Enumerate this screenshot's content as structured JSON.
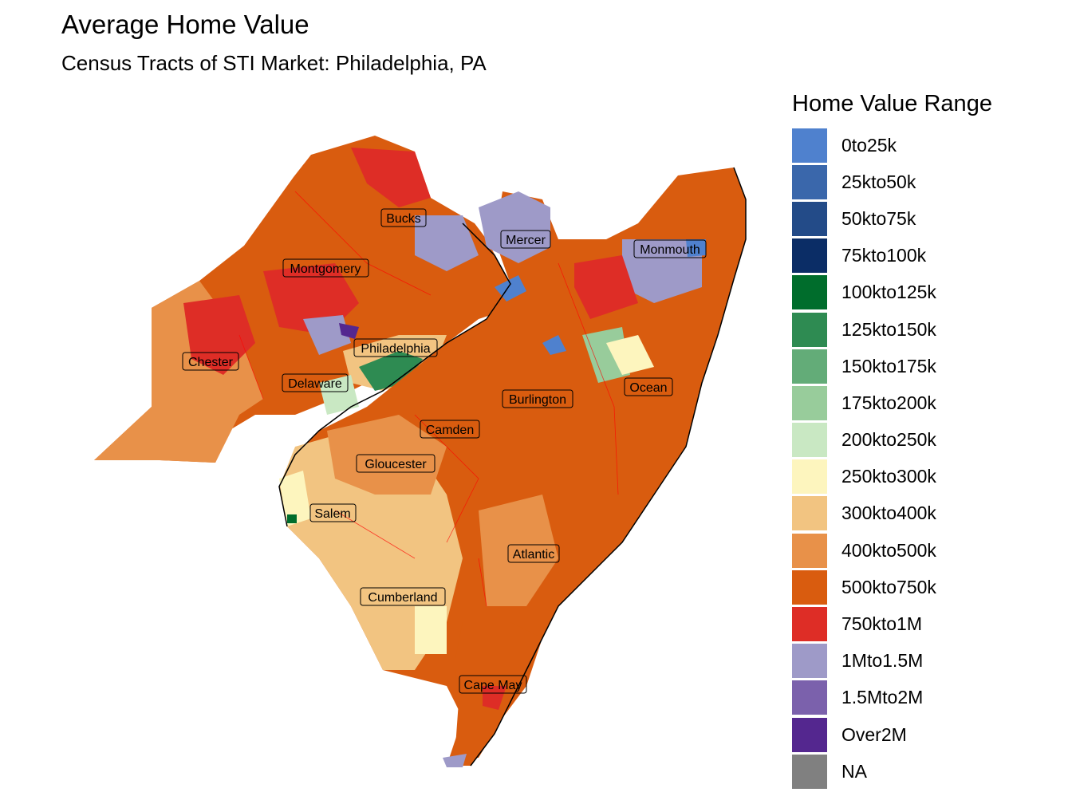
{
  "title": "Average Home Value",
  "subtitle": "Census Tracts of STI Market: Philadelphia, PA",
  "legend": {
    "title": "Home Value Range",
    "items": [
      {
        "label": "0to25k",
        "color": "#4F81CE"
      },
      {
        "label": "25kto50k",
        "color": "#3A67AB"
      },
      {
        "label": "50kto75k",
        "color": "#234B88"
      },
      {
        "label": "75kto100k",
        "color": "#0B2D66"
      },
      {
        "label": "100kto125k",
        "color": "#006D2C"
      },
      {
        "label": "125kto150k",
        "color": "#2E8B52"
      },
      {
        "label": "150kto175k",
        "color": "#63AC78"
      },
      {
        "label": "175kto200k",
        "color": "#98CC9B"
      },
      {
        "label": "200kto250k",
        "color": "#C9E8C3"
      },
      {
        "label": "250kto300k",
        "color": "#FDF5BE"
      },
      {
        "label": "300kto400k",
        "color": "#F2C481"
      },
      {
        "label": "400kto500k",
        "color": "#E89149"
      },
      {
        "label": "500kto750k",
        "color": "#D95C0F"
      },
      {
        "label": "750kto1M",
        "color": "#DE2D26"
      },
      {
        "label": "1Mto1.5M",
        "color": "#9E9AC8"
      },
      {
        "label": "1.5Mto2M",
        "color": "#7B61AC"
      },
      {
        "label": "Over2M",
        "color": "#54278F"
      },
      {
        "label": "NA",
        "color": "#808080"
      }
    ]
  },
  "counties": [
    {
      "name": "Bucks"
    },
    {
      "name": "Mercer"
    },
    {
      "name": "Monmouth"
    },
    {
      "name": "Montgomery"
    },
    {
      "name": "Philadelphia"
    },
    {
      "name": "Chester"
    },
    {
      "name": "Delaware"
    },
    {
      "name": "Burlington"
    },
    {
      "name": "Ocean"
    },
    {
      "name": "Camden"
    },
    {
      "name": "Gloucester"
    },
    {
      "name": "Salem"
    },
    {
      "name": "Atlantic"
    },
    {
      "name": "Cumberland"
    },
    {
      "name": "Cape May"
    }
  ]
}
